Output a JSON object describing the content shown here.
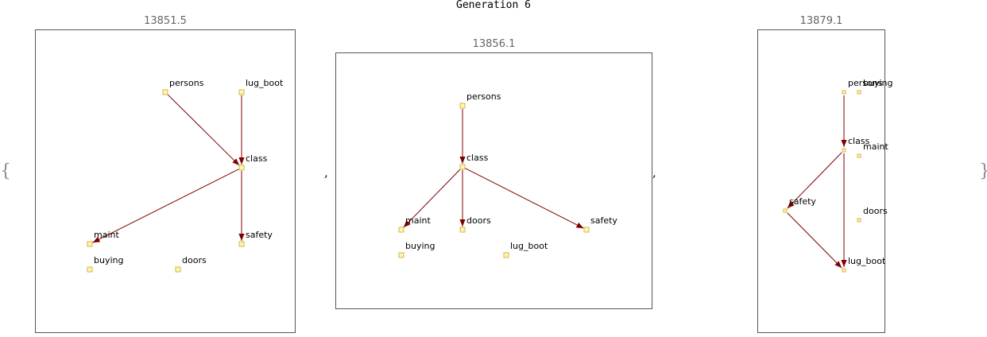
{
  "title": "Generation 6",
  "delimiters": {
    "open": "{",
    "close": "}",
    "separator": ","
  },
  "colors": {
    "edge": "#800000",
    "node_fill": "#fff6b0",
    "node_stroke": "#d4b44a",
    "frame": "#555555"
  },
  "graphs": [
    {
      "score": "13851.5",
      "nodes": [
        "persons",
        "lug_boot",
        "class",
        "maint",
        "safety",
        "buying",
        "doors"
      ],
      "edges": [
        [
          "persons",
          "class"
        ],
        [
          "lug_boot",
          "class"
        ],
        [
          "class",
          "maint"
        ],
        [
          "class",
          "safety"
        ]
      ]
    },
    {
      "score": "13856.1",
      "nodes": [
        "persons",
        "class",
        "maint",
        "doors",
        "safety",
        "buying",
        "lug_boot"
      ],
      "edges": [
        [
          "persons",
          "class"
        ],
        [
          "class",
          "maint"
        ],
        [
          "class",
          "doors"
        ],
        [
          "class",
          "safety"
        ]
      ]
    },
    {
      "score": "13879.1",
      "nodes": [
        "persons",
        "buying",
        "class",
        "maint",
        "safety",
        "doors",
        "lug_boot"
      ],
      "edges": [
        [
          "persons",
          "class"
        ],
        [
          "class",
          "safety"
        ],
        [
          "class",
          "lug_boot"
        ],
        [
          "safety",
          "lug_boot"
        ]
      ]
    }
  ]
}
